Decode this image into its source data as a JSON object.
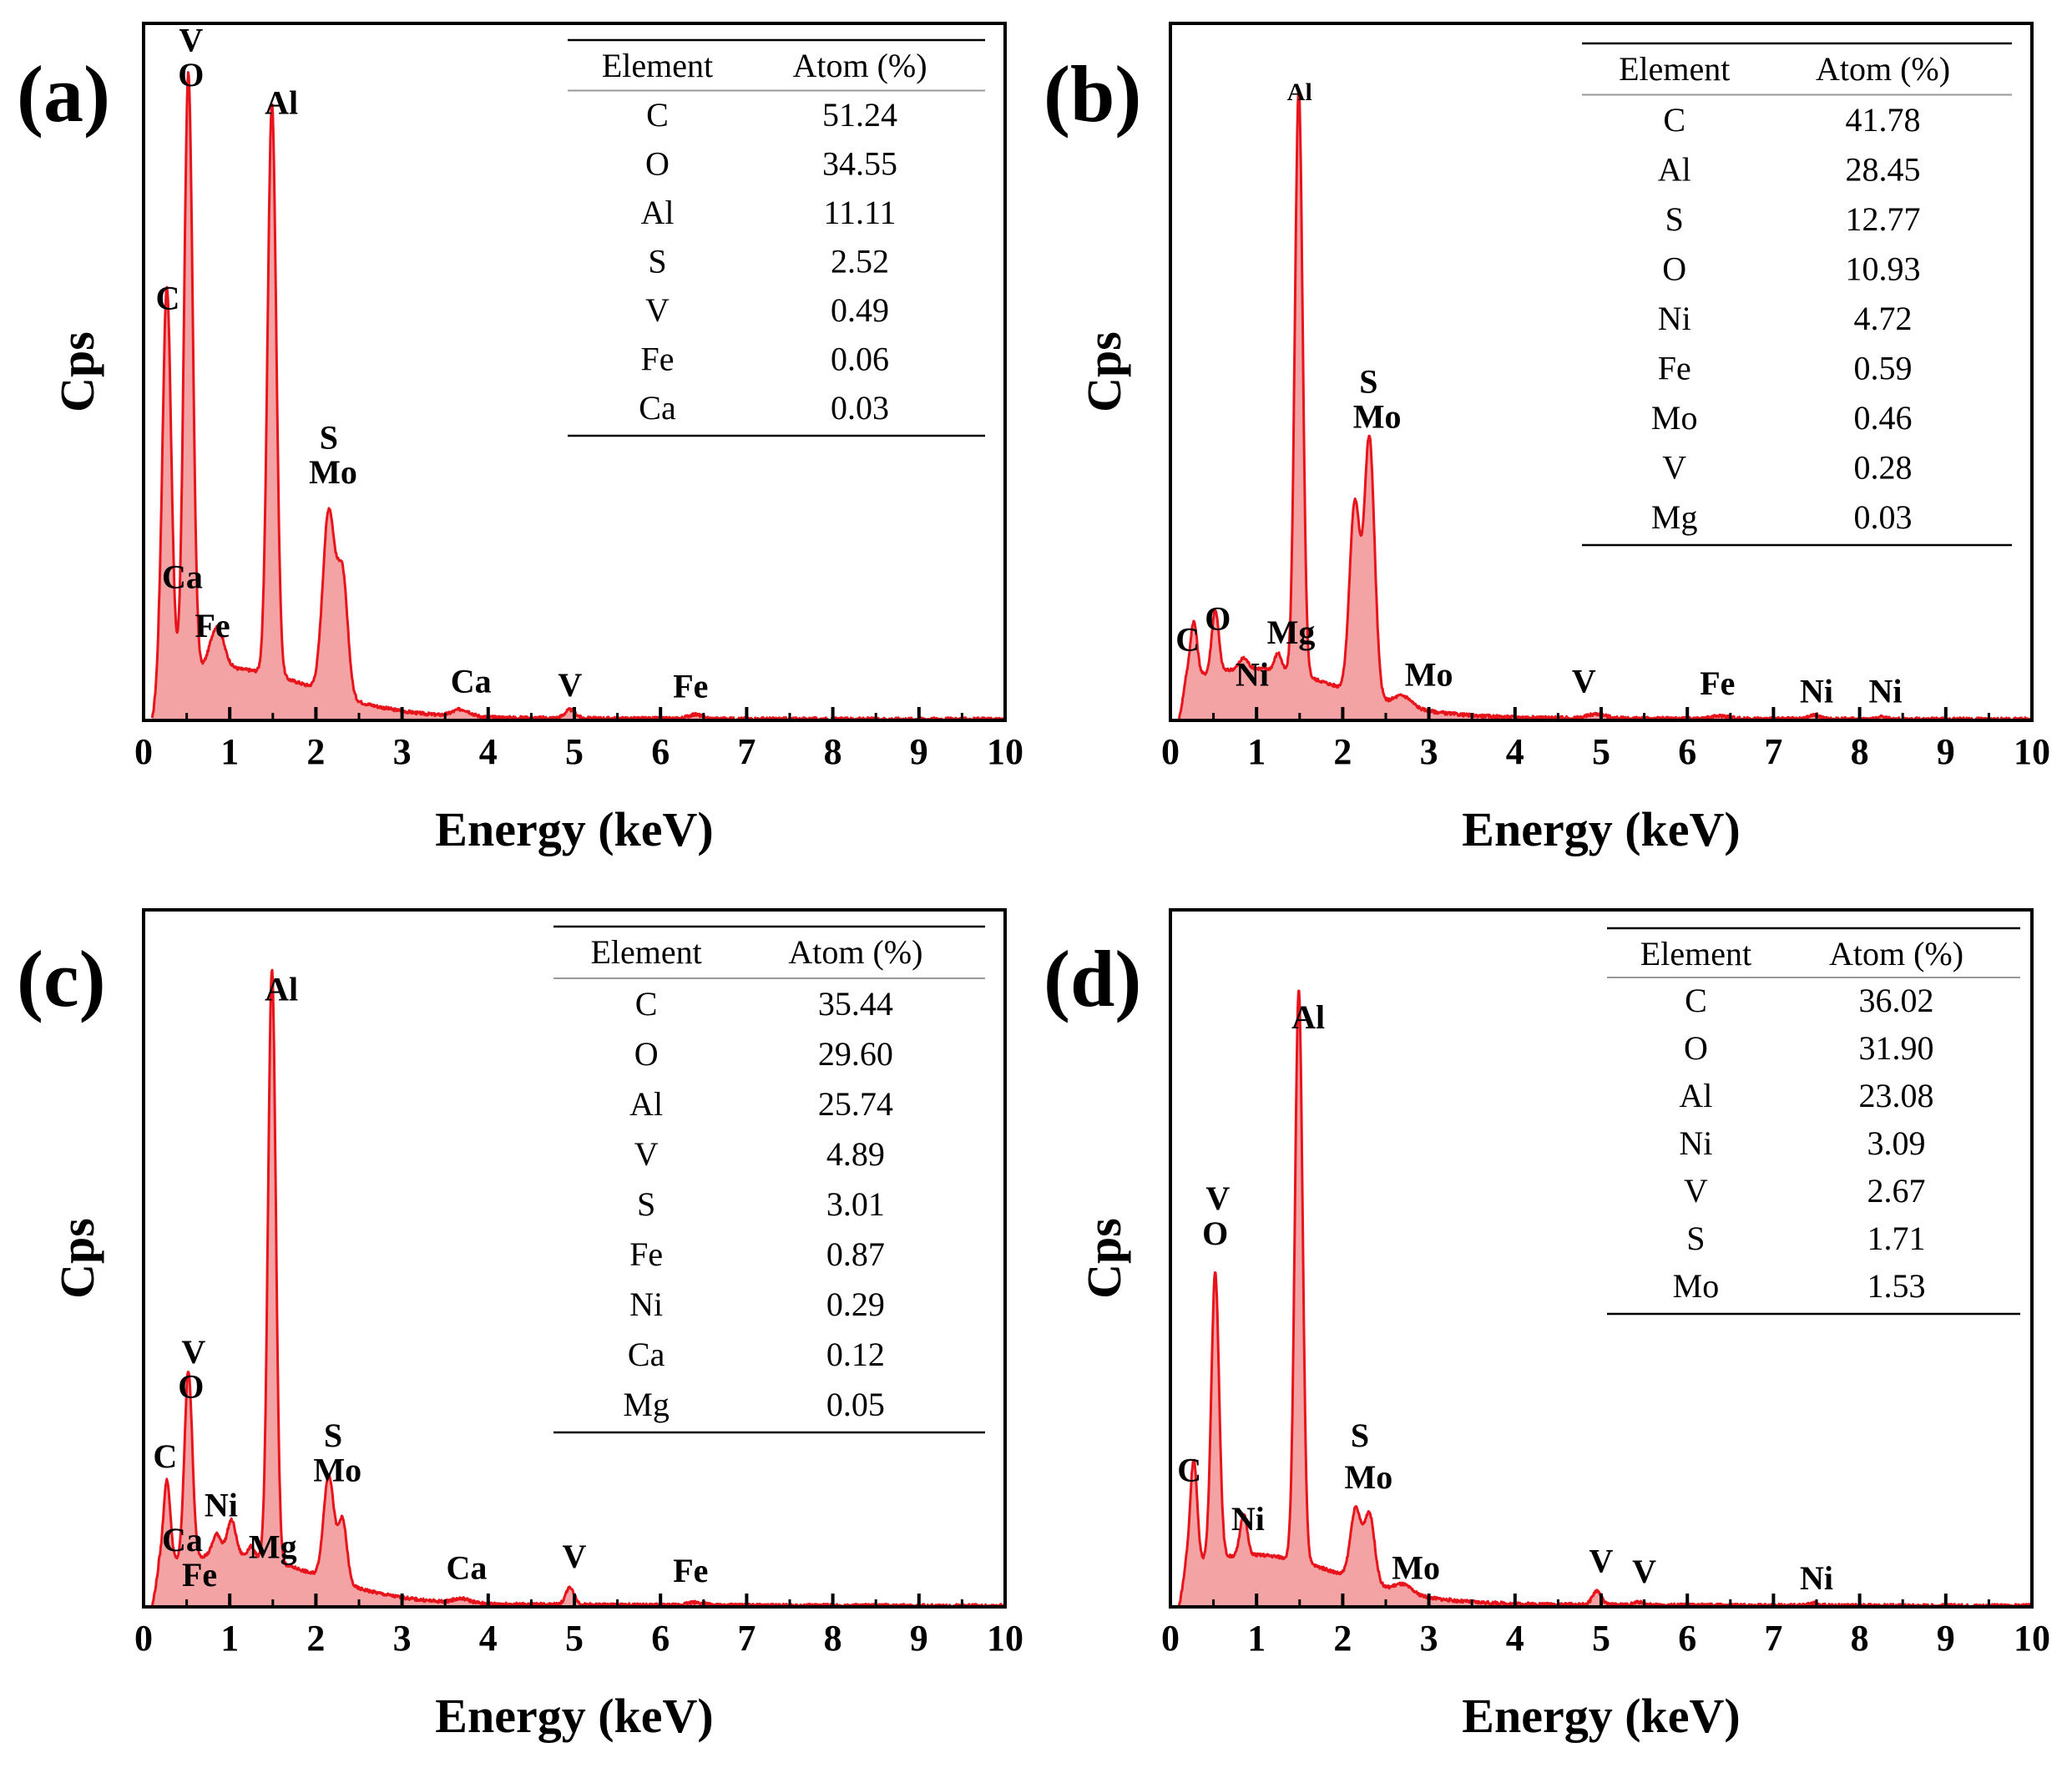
{
  "chart_data": [
    {
      "type": "line",
      "panel": "(a)",
      "xlabel": "Energy (keV)",
      "ylabel": "Cps",
      "xlim": [
        0,
        10
      ],
      "ylim": [
        0,
        100
      ],
      "xticks": [
        "0",
        "1",
        "2",
        "3",
        "4",
        "5",
        "6",
        "7",
        "8",
        "9",
        "10"
      ],
      "table": {
        "headers": [
          "Element",
          "Atom (%)"
        ],
        "rows": [
          [
            "C",
            "51.24"
          ],
          [
            "O",
            "34.55"
          ],
          [
            "Al",
            "11.11"
          ],
          [
            "S",
            "2.52"
          ],
          [
            "V",
            "0.49"
          ],
          [
            "Fe",
            "0.06"
          ],
          [
            "Ca",
            "0.03"
          ]
        ]
      },
      "peaks": [
        {
          "x": 0.27,
          "y": 56,
          "w": 0.05
        },
        {
          "x": 0.52,
          "y": 86,
          "w": 0.05
        },
        {
          "x": 0.85,
          "y": 6,
          "w": 0.08
        },
        {
          "x": 1.49,
          "y": 82,
          "w": 0.05
        },
        {
          "x": 2.15,
          "y": 26,
          "w": 0.07
        },
        {
          "x": 2.31,
          "y": 17,
          "w": 0.06
        },
        {
          "x": 3.69,
          "y": 1,
          "w": 0.1
        },
        {
          "x": 4.95,
          "y": 1.2,
          "w": 0.06
        },
        {
          "x": 6.4,
          "y": 0.6,
          "w": 0.08
        }
      ],
      "annotations": [
        {
          "text": "V",
          "x": 0.55,
          "y": 96
        },
        {
          "text": "O",
          "x": 0.55,
          "y": 91
        },
        {
          "text": "Al",
          "x": 1.6,
          "y": 87
        },
        {
          "text": "C",
          "x": 0.28,
          "y": 59
        },
        {
          "text": "S",
          "x": 2.15,
          "y": 39
        },
        {
          "text": "Mo",
          "x": 2.2,
          "y": 34
        },
        {
          "text": "Ca",
          "x": 0.45,
          "y": 19
        },
        {
          "text": "Fe",
          "x": 0.8,
          "y": 12
        },
        {
          "text": "Ca",
          "x": 3.8,
          "y": 4
        },
        {
          "text": "V",
          "x": 4.95,
          "y": 3.5
        },
        {
          "text": "Fe",
          "x": 6.35,
          "y": 3.3
        }
      ]
    },
    {
      "type": "line",
      "panel": "(b)",
      "xlabel": "Energy (keV)",
      "ylabel": "Cps",
      "xlim": [
        0,
        10
      ],
      "ylim": [
        0,
        100
      ],
      "xticks": [
        "0",
        "1",
        "2",
        "3",
        "4",
        "5",
        "6",
        "7",
        "8",
        "9",
        "10"
      ],
      "table": {
        "headers": [
          "Element",
          "Atom (%)"
        ],
        "rows": [
          [
            "C",
            "41.78"
          ],
          [
            "Al",
            "28.45"
          ],
          [
            "S",
            "12.77"
          ],
          [
            "O",
            "10.93"
          ],
          [
            "Ni",
            "4.72"
          ],
          [
            "Fe",
            "0.59"
          ],
          [
            "Mo",
            "0.46"
          ],
          [
            "V",
            "0.28"
          ],
          [
            "Mg",
            "0.03"
          ]
        ]
      },
      "peaks": [
        {
          "x": 0.27,
          "y": 8,
          "w": 0.04
        },
        {
          "x": 0.52,
          "y": 9,
          "w": 0.04
        },
        {
          "x": 0.85,
          "y": 1.5,
          "w": 0.05
        },
        {
          "x": 1.25,
          "y": 2.5,
          "w": 0.04
        },
        {
          "x": 1.49,
          "y": 84,
          "w": 0.045
        },
        {
          "x": 2.14,
          "y": 27,
          "w": 0.06
        },
        {
          "x": 2.31,
          "y": 37,
          "w": 0.06
        },
        {
          "x": 2.7,
          "y": 1.5,
          "w": 0.1
        },
        {
          "x": 4.95,
          "y": 0.6,
          "w": 0.1
        },
        {
          "x": 6.4,
          "y": 0.4,
          "w": 0.1
        },
        {
          "x": 7.48,
          "y": 0.6,
          "w": 0.06
        },
        {
          "x": 8.26,
          "y": 0.3,
          "w": 0.06
        }
      ],
      "annotations": [
        {
          "text": "Al",
          "x": 1.5,
          "y": 89
        },
        {
          "text": "S",
          "x": 2.3,
          "y": 47
        },
        {
          "text": "Mo",
          "x": 2.4,
          "y": 42
        },
        {
          "text": "C",
          "x": 0.2,
          "y": 10
        },
        {
          "text": "O",
          "x": 0.55,
          "y": 13
        },
        {
          "text": "Ni",
          "x": 0.95,
          "y": 5
        },
        {
          "text": "Mg",
          "x": 1.4,
          "y": 11
        },
        {
          "text": "Mo",
          "x": 3.0,
          "y": 5
        },
        {
          "text": "V",
          "x": 4.8,
          "y": 4
        },
        {
          "text": "Fe",
          "x": 6.35,
          "y": 3.7
        },
        {
          "text": "Ni",
          "x": 7.5,
          "y": 2.6
        },
        {
          "text": "Ni",
          "x": 8.3,
          "y": 2.6
        }
      ]
    },
    {
      "type": "line",
      "panel": "(c)",
      "xlabel": "Energy (keV)",
      "ylabel": "Cps",
      "xlim": [
        0,
        10
      ],
      "ylim": [
        0,
        100
      ],
      "xticks": [
        "0",
        "1",
        "2",
        "3",
        "4",
        "5",
        "6",
        "7",
        "8",
        "9",
        "10"
      ],
      "table": {
        "headers": [
          "Element",
          "Atom (%)"
        ],
        "rows": [
          [
            "C",
            "35.44"
          ],
          [
            "O",
            "29.60"
          ],
          [
            "Al",
            "25.74"
          ],
          [
            "V",
            "4.89"
          ],
          [
            "S",
            "3.01"
          ],
          [
            "Fe",
            "0.87"
          ],
          [
            "Ni",
            "0.29"
          ],
          [
            "Ca",
            "0.12"
          ],
          [
            "Mg",
            "0.05"
          ]
        ]
      },
      "peaks": [
        {
          "x": 0.27,
          "y": 12,
          "w": 0.04
        },
        {
          "x": 0.52,
          "y": 27,
          "w": 0.045
        },
        {
          "x": 0.85,
          "y": 3,
          "w": 0.05
        },
        {
          "x": 1.02,
          "y": 5,
          "w": 0.05
        },
        {
          "x": 1.25,
          "y": 1.5,
          "w": 0.04
        },
        {
          "x": 1.49,
          "y": 85,
          "w": 0.045
        },
        {
          "x": 2.15,
          "y": 15,
          "w": 0.06
        },
        {
          "x": 2.31,
          "y": 9,
          "w": 0.05
        },
        {
          "x": 3.69,
          "y": 0.6,
          "w": 0.1
        },
        {
          "x": 4.95,
          "y": 2.5,
          "w": 0.05
        },
        {
          "x": 6.4,
          "y": 0.4,
          "w": 0.1
        }
      ],
      "annotations": [
        {
          "text": "Al",
          "x": 1.6,
          "y": 87
        },
        {
          "text": "V",
          "x": 0.58,
          "y": 35
        },
        {
          "text": "O",
          "x": 0.55,
          "y": 30
        },
        {
          "text": "C",
          "x": 0.25,
          "y": 20
        },
        {
          "text": "S",
          "x": 2.2,
          "y": 23
        },
        {
          "text": "Mo",
          "x": 2.25,
          "y": 18
        },
        {
          "text": "Ni",
          "x": 0.9,
          "y": 13
        },
        {
          "text": "Ca",
          "x": 0.45,
          "y": 8
        },
        {
          "text": "Fe",
          "x": 0.65,
          "y": 3
        },
        {
          "text": "Mg",
          "x": 1.5,
          "y": 7
        },
        {
          "text": "Ca",
          "x": 3.75,
          "y": 4
        },
        {
          "text": "V",
          "x": 5.0,
          "y": 5.6
        },
        {
          "text": "Fe",
          "x": 6.35,
          "y": 3.6
        }
      ]
    },
    {
      "type": "line",
      "panel": "(d)",
      "xlabel": "Energy (keV)",
      "ylabel": "Cps",
      "xlim": [
        0,
        10
      ],
      "ylim": [
        0,
        100
      ],
      "xticks": [
        "0",
        "1",
        "2",
        "3",
        "4",
        "5",
        "6",
        "7",
        "8",
        "9",
        "10"
      ],
      "table": {
        "headers": [
          "Element",
          "Atom (%)"
        ],
        "rows": [
          [
            "C",
            "36.02"
          ],
          [
            "O",
            "31.90"
          ],
          [
            "Al",
            "23.08"
          ],
          [
            "Ni",
            "3.09"
          ],
          [
            "V",
            "2.67"
          ],
          [
            "S",
            "1.71"
          ],
          [
            "Mo",
            "1.53"
          ]
        ]
      },
      "peaks": [
        {
          "x": 0.27,
          "y": 15,
          "w": 0.04
        },
        {
          "x": 0.52,
          "y": 41,
          "w": 0.045
        },
        {
          "x": 0.85,
          "y": 6,
          "w": 0.04
        },
        {
          "x": 1.49,
          "y": 82,
          "w": 0.045
        },
        {
          "x": 2.15,
          "y": 10,
          "w": 0.06
        },
        {
          "x": 2.31,
          "y": 10,
          "w": 0.06
        },
        {
          "x": 2.7,
          "y": 1.2,
          "w": 0.1
        },
        {
          "x": 4.95,
          "y": 2,
          "w": 0.05
        },
        {
          "x": 5.43,
          "y": 0.4,
          "w": 0.05
        },
        {
          "x": 7.48,
          "y": 0.3,
          "w": 0.06
        }
      ],
      "annotations": [
        {
          "text": "Al",
          "x": 1.6,
          "y": 83
        },
        {
          "text": "V",
          "x": 0.55,
          "y": 57
        },
        {
          "text": "O",
          "x": 0.52,
          "y": 52
        },
        {
          "text": "C",
          "x": 0.22,
          "y": 18
        },
        {
          "text": "S",
          "x": 2.2,
          "y": 23
        },
        {
          "text": "Mo",
          "x": 2.3,
          "y": 17
        },
        {
          "text": "Ni",
          "x": 0.9,
          "y": 11
        },
        {
          "text": "Mo",
          "x": 2.85,
          "y": 4
        },
        {
          "text": "V",
          "x": 5.0,
          "y": 5
        },
        {
          "text": "V",
          "x": 5.5,
          "y": 3.5
        },
        {
          "text": "Ni",
          "x": 7.5,
          "y": 2.5
        }
      ]
    }
  ],
  "colors": {
    "line": "#e8141c",
    "fill": "#f4a3a5",
    "axis": "#000000"
  }
}
